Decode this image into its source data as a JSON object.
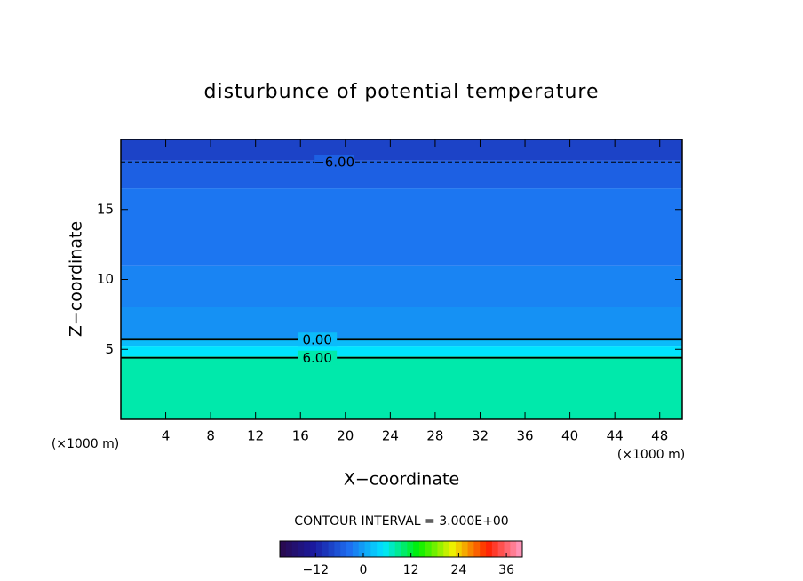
{
  "chart_data": {
    "type": "contour",
    "title": "disturbunce of potential temperature",
    "xlabel": "X−coordinate",
    "ylabel": "Z−coordinate",
    "x_unit_label": "(×1000 m)",
    "y_unit_label": "(×1000 m)",
    "subtitle": "CONTOUR INTERVAL = 3.000E+00",
    "xlim": [
      0,
      50
    ],
    "xticks": [
      4,
      8,
      12,
      16,
      20,
      24,
      28,
      32,
      36,
      40,
      44,
      48
    ],
    "ylim": [
      0,
      20
    ],
    "yticks": [
      5,
      10,
      15
    ],
    "z": [
      0,
      4.5,
      5.2,
      5.8,
      8,
      11,
      16.5,
      18.5
    ],
    "values": [
      8,
      5,
      2,
      -1,
      -2,
      -3,
      -5,
      -8
    ],
    "contours": [
      {
        "level": -6,
        "z": 18.4,
        "label": "−6.00",
        "label_x": 19
      },
      {
        "level": -3,
        "z": 16.6
      },
      {
        "level": 0,
        "z": 5.7,
        "label": "0.00",
        "label_x": 17.5
      },
      {
        "level": 6,
        "z": 4.4,
        "label": "6.00",
        "label_x": 17.5
      }
    ],
    "clim": [
      -21,
      40
    ],
    "cticks": [
      {
        "value": -12,
        "label": "−12"
      },
      0,
      12,
      24,
      36
    ],
    "colormap": [
      "#2a0a4a",
      "#1a1aa0",
      "#1e6ef0",
      "#00e6ff",
      "#00f000",
      "#f0f000",
      "#ff2000",
      "#ff9ec8"
    ]
  }
}
